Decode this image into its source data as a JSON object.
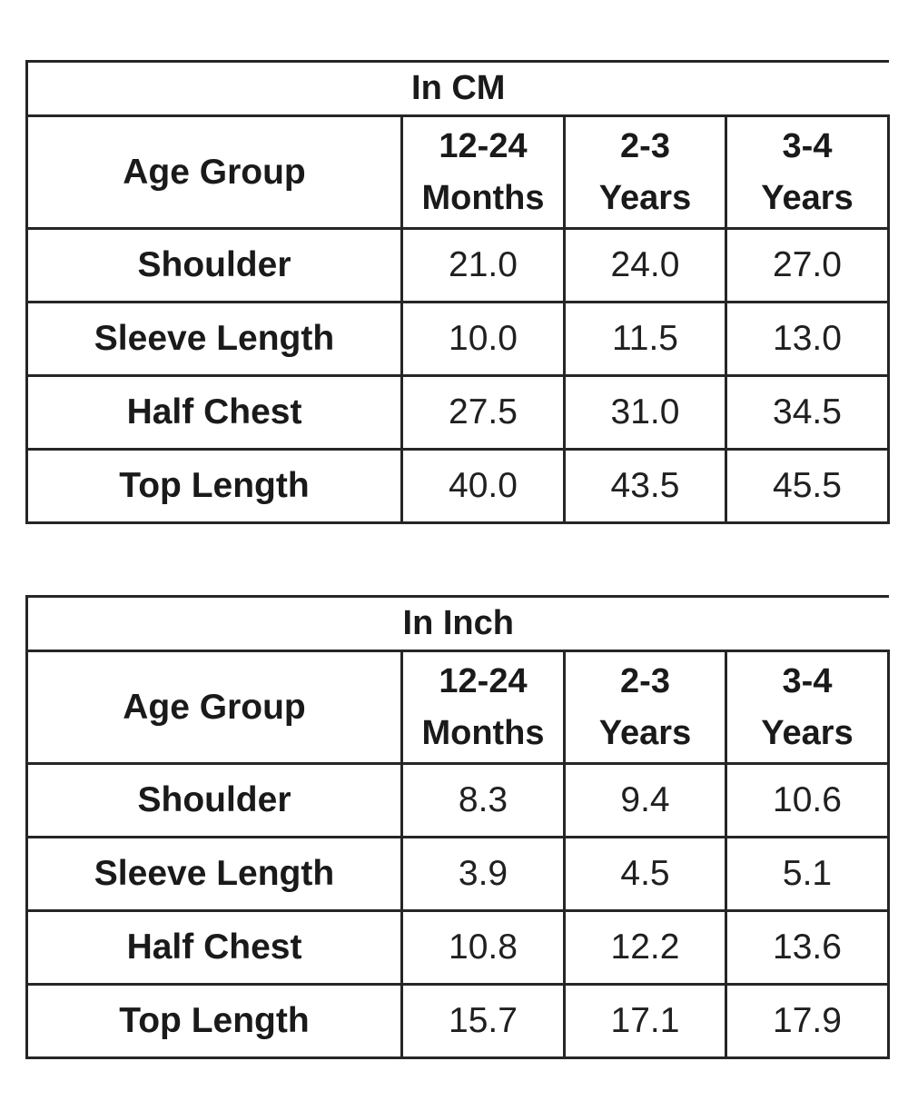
{
  "page": {
    "background_color": "#ffffff",
    "border_color": "#262626",
    "text_color": "#1a1a1a"
  },
  "chart_data": {
    "type": "table",
    "tables": [
      {
        "title": "In CM",
        "row_header": "Age Group",
        "columns": [
          "12-24 Months",
          "2-3 Years",
          "3-4 Years"
        ],
        "rows": [
          {
            "label": "Shoulder",
            "values": [
              21.0,
              24.0,
              27.0
            ]
          },
          {
            "label": "Sleeve Length",
            "values": [
              10.0,
              11.5,
              13.0
            ]
          },
          {
            "label": "Half Chest",
            "values": [
              27.5,
              31.0,
              34.5
            ]
          },
          {
            "label": "Top Length",
            "values": [
              40.0,
              43.5,
              45.5
            ]
          }
        ]
      },
      {
        "title": "In Inch",
        "row_header": "Age Group",
        "columns": [
          "12-24 Months",
          "2-3 Years",
          "3-4 Years"
        ],
        "rows": [
          {
            "label": "Shoulder",
            "values": [
              8.3,
              9.4,
              10.6
            ]
          },
          {
            "label": "Sleeve Length",
            "values": [
              3.9,
              4.5,
              5.1
            ]
          },
          {
            "label": "Half Chest",
            "values": [
              10.8,
              12.2,
              13.6
            ]
          },
          {
            "label": "Top Length",
            "values": [
              15.7,
              17.1,
              17.9
            ]
          }
        ]
      }
    ]
  },
  "tables": [
    {
      "title": "In CM",
      "header": {
        "col0": "Age Group",
        "columns": [
          "12-24\nMonths",
          "2-3\nYears",
          "3-4\nYears"
        ]
      },
      "rows": [
        {
          "label": "Shoulder",
          "values": [
            "21.0",
            "24.0",
            "27.0"
          ]
        },
        {
          "label": "Sleeve Length",
          "values": [
            "10.0",
            "11.5",
            "13.0"
          ]
        },
        {
          "label": "Half Chest",
          "values": [
            "27.5",
            "31.0",
            "34.5"
          ]
        },
        {
          "label": "Top Length",
          "values": [
            "40.0",
            "43.5",
            "45.5"
          ]
        }
      ]
    },
    {
      "title": "In Inch",
      "header": {
        "col0": "Age Group",
        "columns": [
          "12-24\nMonths",
          "2-3\nYears",
          "3-4\nYears"
        ]
      },
      "rows": [
        {
          "label": "Shoulder",
          "values": [
            "8.3",
            "9.4",
            "10.6"
          ]
        },
        {
          "label": "Sleeve Length",
          "values": [
            "3.9",
            "4.5",
            "5.1"
          ]
        },
        {
          "label": "Half Chest",
          "values": [
            "10.8",
            "12.2",
            "13.6"
          ]
        },
        {
          "label": "Top Length",
          "values": [
            "15.7",
            "17.1",
            "17.9"
          ]
        }
      ]
    }
  ]
}
